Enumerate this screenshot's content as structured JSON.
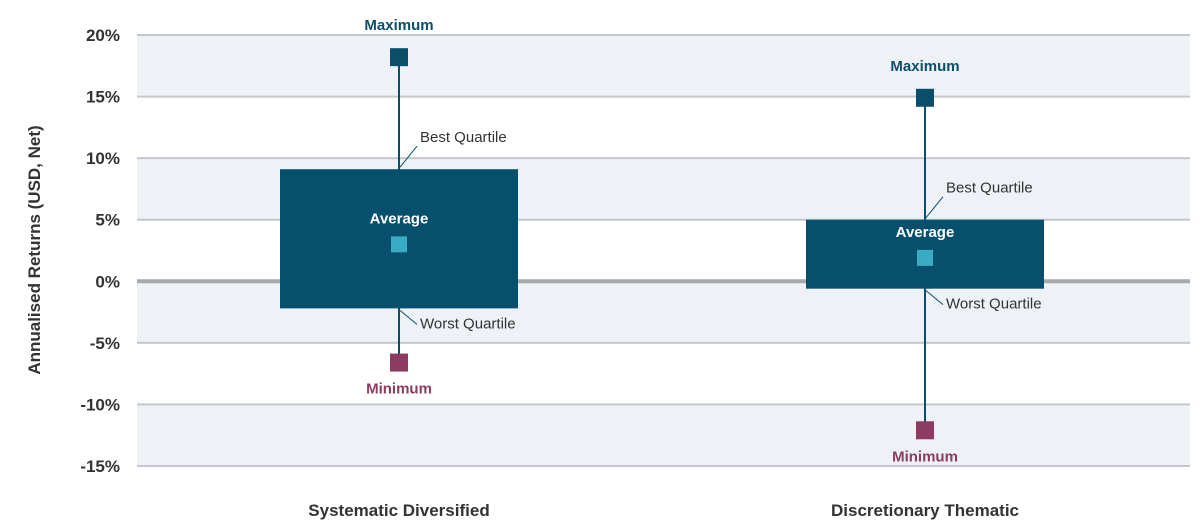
{
  "colors": {
    "band": "#eef1f5",
    "gridline": "#c4c8cc",
    "zeroline": "#a6a9ab",
    "box": "#06506d",
    "average": "#3aaac5",
    "maximum": "#0b4f6b",
    "minimum": "#8e3b63",
    "text": "#333333"
  },
  "chart_data": {
    "type": "box",
    "ylabel": "Annualised Returns (USD, Net)",
    "ylim": [
      -15,
      20
    ],
    "yticks": [
      20,
      15,
      10,
      5,
      0,
      -5,
      -10,
      -15
    ],
    "ytick_labels": [
      "20%",
      "15%",
      "10%",
      "5%",
      "0%",
      "-5%",
      "-10%",
      "-15%"
    ],
    "grid": true,
    "categories": [
      "Systematic Diversified",
      "Discretionary Thematic"
    ],
    "series": [
      {
        "category": "Systematic Diversified",
        "maximum": 18.2,
        "best_quartile": 9.1,
        "average": 3.0,
        "worst_quartile": -2.2,
        "minimum": -6.6
      },
      {
        "category": "Discretionary Thematic",
        "maximum": 14.9,
        "best_quartile": 5.0,
        "average": 1.9,
        "worst_quartile": -0.6,
        "minimum": -12.1
      }
    ],
    "annotations": {
      "maximum": "Maximum",
      "minimum": "Minimum",
      "average": "Average",
      "best_quartile": "Best Quartile",
      "worst_quartile": "Worst Quartile"
    }
  }
}
